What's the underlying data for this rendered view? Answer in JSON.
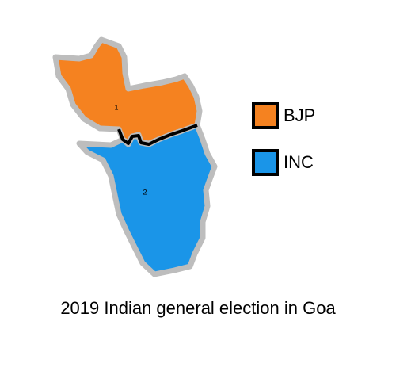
{
  "map": {
    "title": "2019 Indian general election in Goa",
    "regions": [
      {
        "label": "1",
        "color": "#f58220"
      },
      {
        "label": "2",
        "color": "#1a95e8"
      }
    ],
    "legend": [
      {
        "name": "BJP",
        "color": "#f58220"
      },
      {
        "name": "INC",
        "color": "#1a95e8"
      }
    ]
  }
}
